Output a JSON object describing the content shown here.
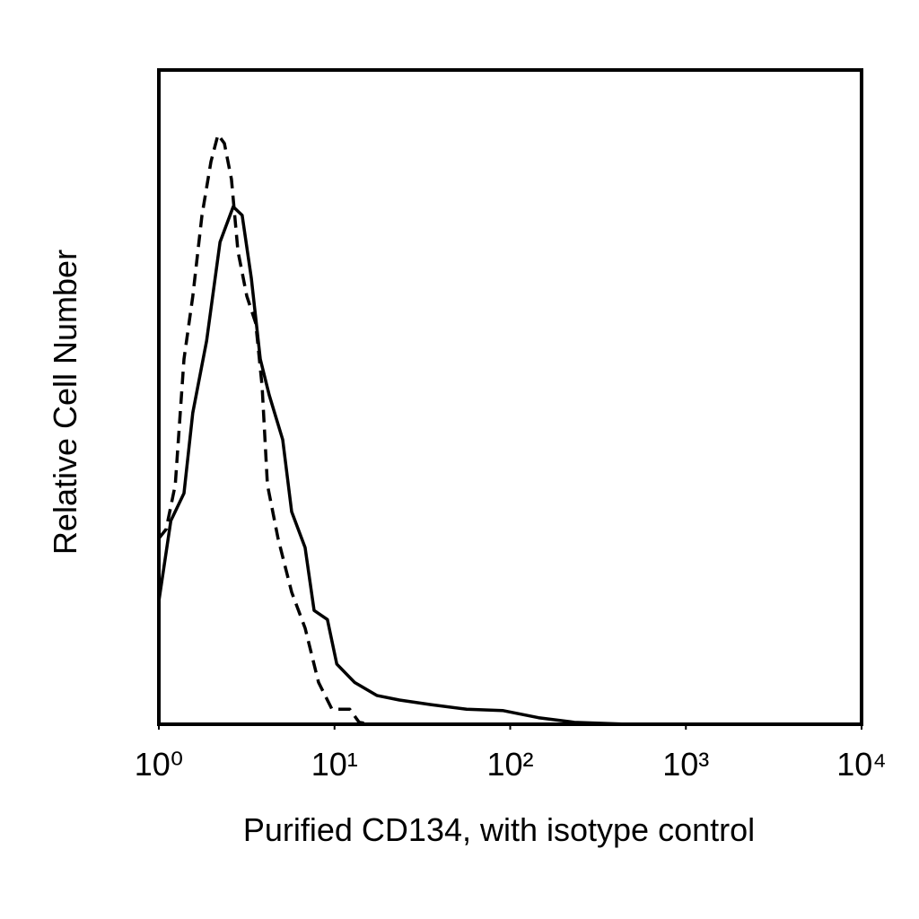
{
  "chart_data": {
    "type": "line",
    "xlabel": "Purified CD134, with isotype control",
    "ylabel": "Relative Cell Number",
    "xscale": "log",
    "xlim": [
      1,
      10000
    ],
    "xticks": [
      {
        "value": 1,
        "label": "10⁰"
      },
      {
        "value": 10,
        "label": "10¹"
      },
      {
        "value": 100,
        "label": "10²"
      },
      {
        "value": 1000,
        "label": "10³"
      },
      {
        "value": 10000,
        "label": "10⁴"
      }
    ],
    "ylim": [
      0,
      100
    ],
    "series": [
      {
        "color": "#000000",
        "dash": true,
        "x": [
          1.0,
          1.1,
          1.24,
          1.39,
          1.56,
          1.76,
          1.98,
          2.17,
          2.36,
          2.59,
          2.82,
          3.17,
          3.56,
          3.87,
          4.15,
          4.77,
          5.7,
          6.8,
          8.11,
          9.67,
          12.2,
          13.8,
          16.0
        ],
        "values": [
          28.4,
          29.8,
          36.6,
          55.8,
          65.4,
          77.8,
          86.0,
          90.1,
          88.8,
          83.3,
          72.3,
          65.4,
          61.3,
          51.7,
          36.6,
          28.4,
          20.2,
          14.7,
          6.4,
          2.3,
          2.3,
          0.3,
          0
        ]
      },
      {
        "color": "#000000",
        "dash": false,
        "x": [
          1.0,
          1.17,
          1.39,
          1.56,
          1.87,
          2.23,
          2.65,
          2.98,
          3.36,
          3.78,
          4.25,
          5.07,
          5.7,
          6.8,
          7.65,
          9.11,
          10.3,
          13.0,
          17.4,
          23.4,
          35.3,
          56.5,
          90.5,
          145,
          232,
          470
        ],
        "values": [
          18.8,
          31.1,
          35.3,
          47.6,
          58.6,
          73.7,
          79.1,
          77.8,
          68.2,
          55.8,
          50.3,
          43.5,
          32.5,
          27.0,
          17.4,
          16.0,
          9.2,
          6.4,
          4.4,
          3.7,
          3.0,
          2.3,
          2.1,
          1.0,
          0.3,
          0
        ]
      }
    ]
  }
}
